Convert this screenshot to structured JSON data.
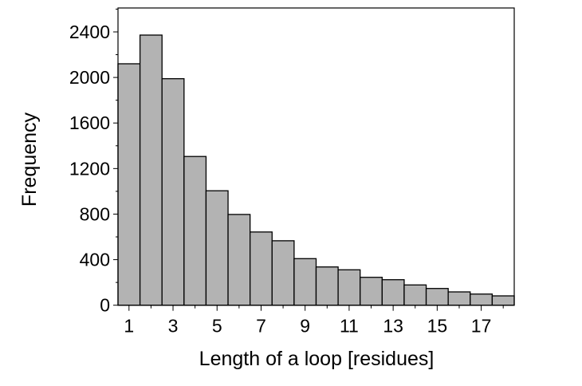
{
  "chart_data": {
    "type": "bar",
    "title": "",
    "xlabel": "Length of a loop [residues]",
    "ylabel": "Frequency",
    "categories": [
      1,
      2,
      3,
      4,
      5,
      6,
      7,
      8,
      9,
      10,
      11,
      12,
      13,
      14,
      15,
      16,
      17,
      18
    ],
    "values": [
      2120,
      2372,
      1989,
      1306,
      1005,
      797,
      643,
      566,
      409,
      336,
      311,
      245,
      224,
      178,
      147,
      117,
      98,
      82
    ],
    "xlim": [
      0.5,
      18.5
    ],
    "ylim": [
      0,
      2610
    ],
    "x_tick_labels": [
      "1",
      "3",
      "5",
      "7",
      "9",
      "11",
      "13",
      "15",
      "17"
    ],
    "y_tick_labels": [
      "0",
      "400",
      "800",
      "1200",
      "1600",
      "2000",
      "2400"
    ],
    "grid": false,
    "bar_color": "#b3b3b3",
    "edge_color": "#000000"
  }
}
